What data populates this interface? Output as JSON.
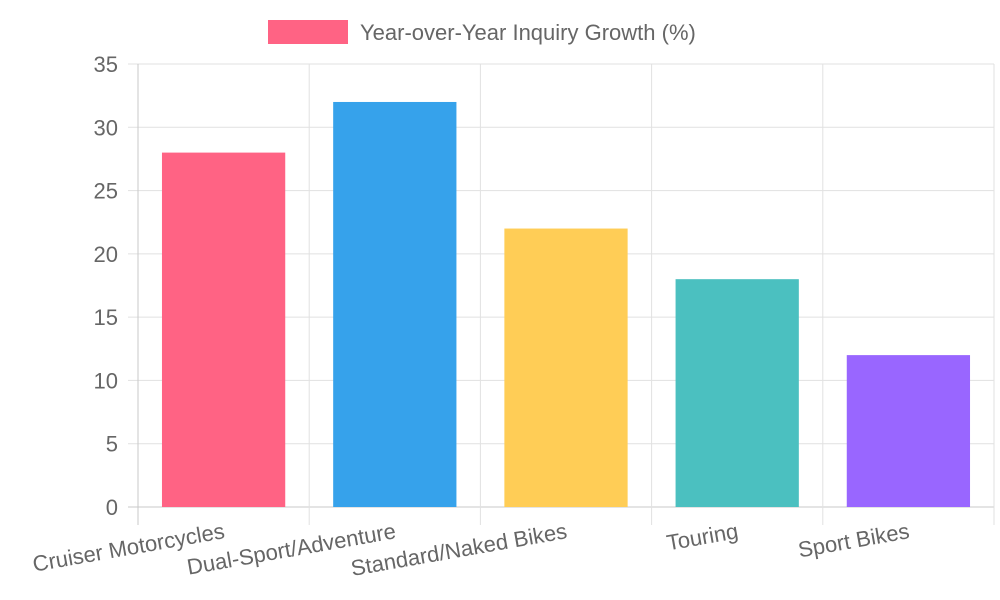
{
  "chart_data": {
    "type": "bar",
    "categories": [
      "Cruiser Motorcycles",
      "Dual-Sport/Adventure",
      "Standard/Naked Bikes",
      "Touring",
      "Sport Bikes"
    ],
    "series": [
      {
        "name": "Year-over-Year Inquiry Growth (%)",
        "values": [
          28,
          32,
          22,
          18,
          12
        ]
      }
    ],
    "bar_colors": [
      "#ff6384",
      "#36a2eb",
      "#ffcd56",
      "#4bc0c0",
      "#9966ff"
    ],
    "legend_color": "#ff6384",
    "legend_position": "top",
    "ylim": [
      0,
      35
    ],
    "yticks": [
      0,
      5,
      10,
      15,
      20,
      25,
      30,
      35
    ],
    "grid": true,
    "title": "",
    "xlabel": "",
    "ylabel": ""
  }
}
